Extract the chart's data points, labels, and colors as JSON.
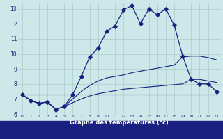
{
  "xlabel": "Graphe des températures (°c)",
  "bg_color": "#cce8e8",
  "grid_color": "#aacccc",
  "line_color": "#1a2080",
  "xlim": [
    -0.5,
    23.5
  ],
  "ylim": [
    6,
    13.4
  ],
  "xticks": [
    0,
    1,
    2,
    3,
    4,
    5,
    6,
    7,
    8,
    9,
    10,
    11,
    12,
    13,
    14,
    15,
    16,
    17,
    18,
    19,
    20,
    21,
    22,
    23
  ],
  "yticks": [
    6,
    7,
    8,
    9,
    10,
    11,
    12,
    13
  ],
  "series": [
    {
      "x": [
        0,
        1,
        2,
        3,
        4,
        5,
        6,
        7,
        8,
        9,
        10,
        11,
        12,
        13,
        14,
        15,
        16,
        17,
        18,
        19,
        20,
        21,
        22,
        23
      ],
      "y": [
        7.3,
        6.9,
        6.7,
        6.8,
        6.3,
        6.5,
        7.3,
        8.5,
        9.8,
        10.4,
        11.5,
        11.85,
        12.95,
        13.2,
        12.0,
        13.0,
        12.6,
        13.0,
        11.9,
        9.85,
        8.3,
        8.0,
        8.0,
        7.5
      ],
      "marker": true
    },
    {
      "x": [
        0,
        1,
        2,
        3,
        4,
        5,
        6,
        7,
        8,
        9,
        10,
        11,
        12,
        13,
        14,
        15,
        16,
        17,
        18,
        19,
        20,
        21,
        22,
        23
      ],
      "y": [
        7.3,
        6.9,
        6.7,
        6.8,
        6.3,
        6.5,
        7.0,
        7.5,
        7.9,
        8.2,
        8.4,
        8.5,
        8.6,
        8.75,
        8.85,
        8.95,
        9.05,
        9.15,
        9.25,
        9.8,
        9.85,
        9.85,
        9.75,
        9.6
      ],
      "marker": false
    },
    {
      "x": [
        0,
        1,
        2,
        3,
        4,
        5,
        6,
        7,
        8,
        9,
        10,
        11,
        12,
        13,
        14,
        15,
        16,
        17,
        18,
        19,
        20,
        21,
        22,
        23
      ],
      "y": [
        7.3,
        6.9,
        6.7,
        6.8,
        6.3,
        6.5,
        6.75,
        7.0,
        7.2,
        7.35,
        7.45,
        7.55,
        7.65,
        7.7,
        7.75,
        7.8,
        7.85,
        7.9,
        7.95,
        8.0,
        8.3,
        8.3,
        8.2,
        8.1
      ],
      "marker": false
    },
    {
      "x": [
        0,
        23
      ],
      "y": [
        7.3,
        7.3
      ],
      "marker": false
    }
  ]
}
